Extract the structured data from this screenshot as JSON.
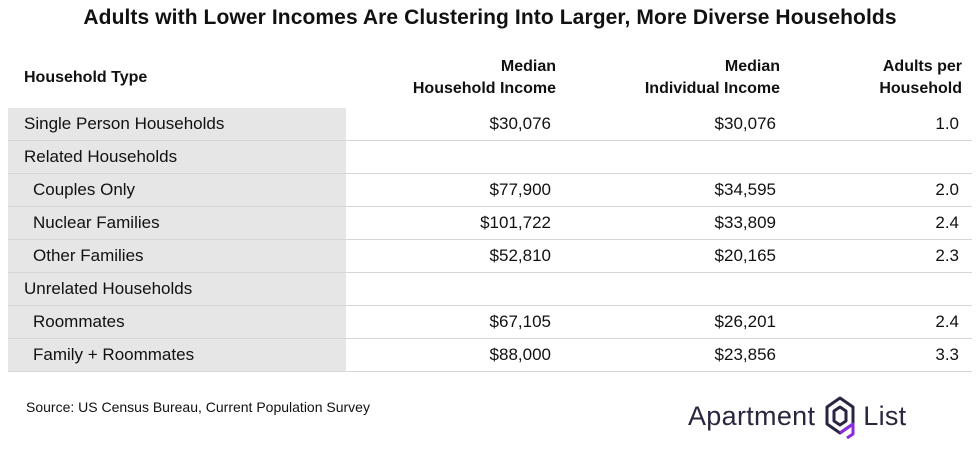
{
  "title": "Adults with Lower Incomes Are Clustering Into Larger, More Diverse Households",
  "chart_data": {
    "type": "table",
    "columns": [
      "Household Type",
      [
        "Median",
        "Household Income"
      ],
      [
        "Median",
        "Individual Income"
      ],
      [
        "Adults per",
        "Household"
      ]
    ],
    "rows": [
      {
        "label": "Single Person Households",
        "level": 0,
        "household_income": "$30,076",
        "individual_income": "$30,076",
        "adults": "1.0"
      },
      {
        "label": "Related Households",
        "level": 0,
        "household_income": "",
        "individual_income": "",
        "adults": ""
      },
      {
        "label": "Couples Only",
        "level": 1,
        "household_income": "$77,900",
        "individual_income": "$34,595",
        "adults": "2.0"
      },
      {
        "label": "Nuclear Families",
        "level": 1,
        "household_income": "$101,722",
        "individual_income": "$33,809",
        "adults": "2.4"
      },
      {
        "label": "Other Families",
        "level": 1,
        "household_income": "$52,810",
        "individual_income": "$20,165",
        "adults": "2.3"
      },
      {
        "label": "Unrelated Households",
        "level": 0,
        "household_income": "",
        "individual_income": "",
        "adults": ""
      },
      {
        "label": "Roommates",
        "level": 1,
        "household_income": "$67,105",
        "individual_income": "$26,201",
        "adults": "2.4"
      },
      {
        "label": "Family + Roommates",
        "level": 1,
        "household_income": "$88,000",
        "individual_income": "$23,856",
        "adults": "3.3"
      }
    ]
  },
  "source": "Source: US Census Bureau, Current Population Survey",
  "logo": {
    "word1": "Apartment",
    "word2": "List",
    "icon": "apartment-list-logo-icon",
    "colors": {
      "text": "#2b2540",
      "dark": "#2b2540",
      "accent": "#8a2be2"
    }
  },
  "colors": {
    "label_column_bg": "#e6e6e6",
    "row_divider": "#d6d6d6"
  }
}
